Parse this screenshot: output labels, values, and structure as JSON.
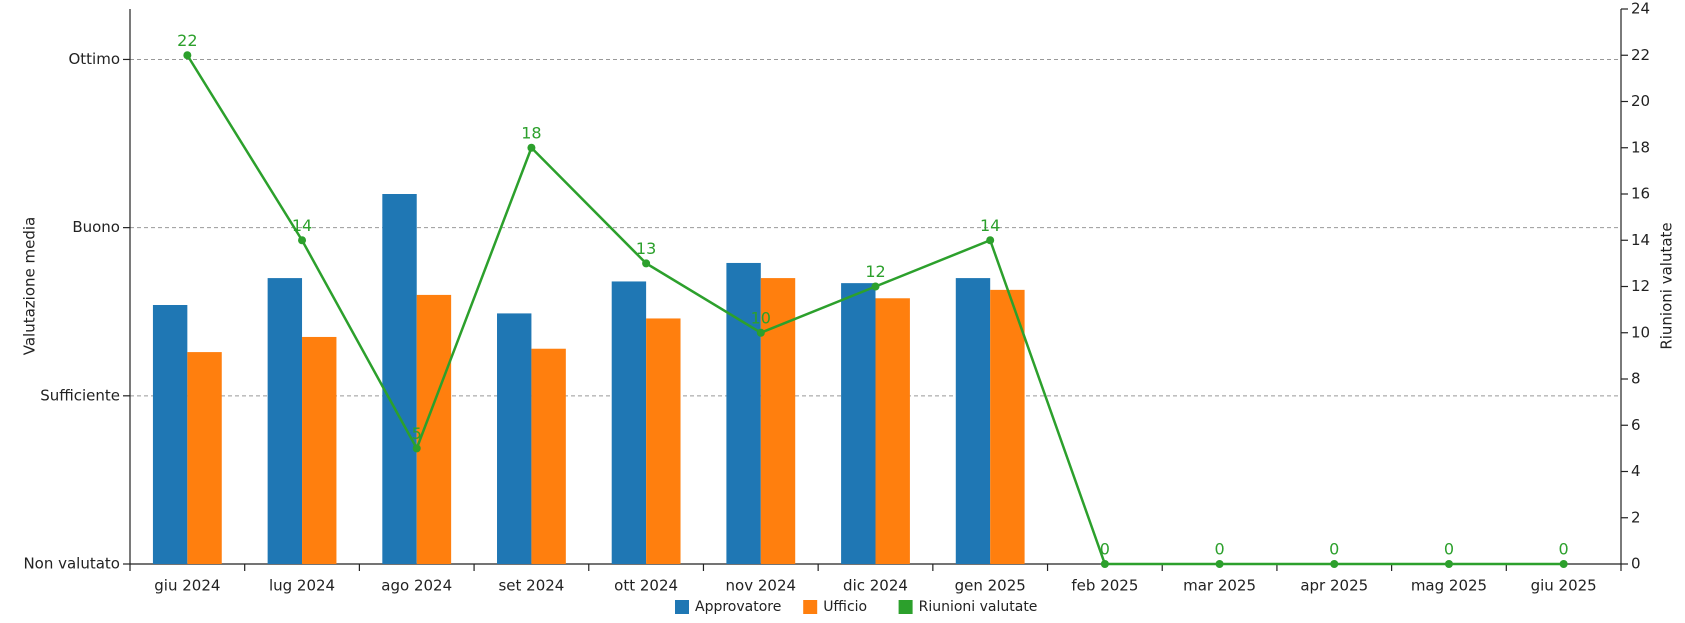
{
  "chart_data": {
    "type": "bar",
    "categories": [
      "giu 2024",
      "lug 2024",
      "ago 2024",
      "set 2024",
      "ott 2024",
      "nov 2024",
      "dic 2024",
      "gen 2025",
      "feb 2025",
      "mar 2025",
      "apr 2025",
      "mag 2025",
      "giu 2025"
    ],
    "y_label": "Valutazione media",
    "y2_label": "Riunioni valutate",
    "ylim": [
      0,
      3.3
    ],
    "yticks": [
      {
        "value": 0,
        "label": "Non valutato"
      },
      {
        "value": 1,
        "label": "Sufficiente"
      },
      {
        "value": 2,
        "label": "Buono"
      },
      {
        "value": 3,
        "label": "Ottimo"
      }
    ],
    "y2lim": [
      0,
      24
    ],
    "y2ticks": [
      0,
      2,
      4,
      6,
      8,
      10,
      12,
      14,
      16,
      18,
      20,
      22,
      24
    ],
    "grid": true,
    "legend": "bottom",
    "series": [
      {
        "name": "Approvatore",
        "type": "bar",
        "color": "#1f77b4",
        "values": [
          1.54,
          1.7,
          2.2,
          1.49,
          1.68,
          1.79,
          1.67,
          1.7,
          null,
          null,
          null,
          null,
          null
        ]
      },
      {
        "name": "Ufficio",
        "type": "bar",
        "color": "#ff7f0e",
        "values": [
          1.26,
          1.35,
          1.6,
          1.28,
          1.46,
          1.7,
          1.58,
          1.63,
          null,
          null,
          null,
          null,
          null
        ]
      },
      {
        "name": "Riunioni valutate",
        "type": "line",
        "axis": "y2",
        "color": "#2ca02c",
        "values": [
          22,
          14,
          5,
          18,
          13,
          10,
          12,
          14,
          0,
          0,
          0,
          0,
          0
        ]
      }
    ]
  }
}
